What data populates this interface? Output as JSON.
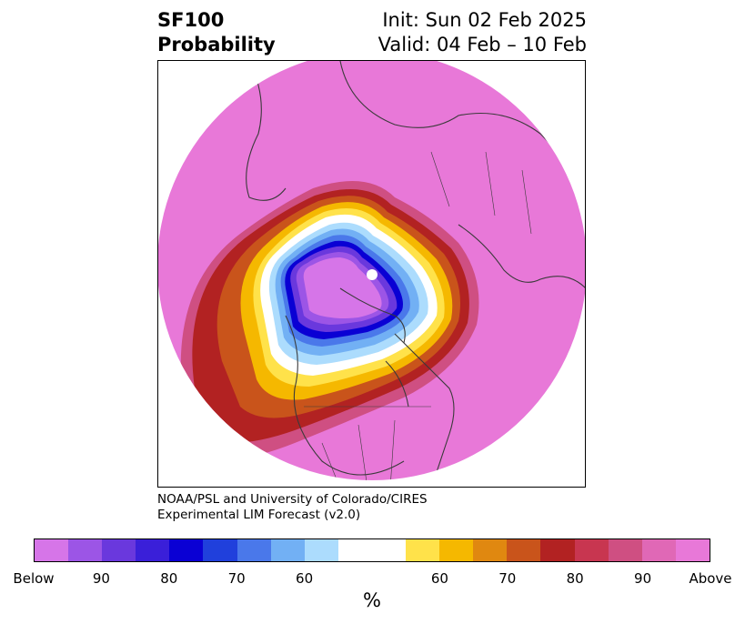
{
  "header": {
    "title_line1": "SF100",
    "title_line2": "Probability",
    "init_text": "Init: Sun 02 Feb 2025",
    "valid_text": "Valid: 04 Feb – 10 Feb"
  },
  "credit": {
    "line1": "NOAA/PSL and University of Colorado/CIRES",
    "line2": "Experimental LIM Forecast (v2.0)"
  },
  "colorbar": {
    "unit_label": "%",
    "colors": [
      "#d675e8",
      "#9c55e6",
      "#6a38dd",
      "#3a1fd9",
      "#0a00d4",
      "#2040dc",
      "#4a78ea",
      "#72b0f4",
      "#acdcfd",
      "#ffffff",
      "#ffe24a",
      "#f5b800",
      "#e08810",
      "#c9541b",
      "#b22222",
      "#c83650",
      "#cf4f82",
      "#e068b6",
      "#e878d8"
    ],
    "ticks": [
      "Below",
      "90",
      "80",
      "70",
      "60",
      "60",
      "70",
      "80",
      "90",
      "Above"
    ],
    "segment_flex": [
      1,
      1,
      1,
      1,
      1,
      1,
      1,
      1,
      1,
      2,
      1,
      1,
      1,
      1,
      1,
      1,
      1,
      1,
      1
    ]
  },
  "map": {
    "projection": "north-polar-stereographic",
    "background_color": "#e878d8",
    "below_colors": [
      "#acdcfd",
      "#72b0f4",
      "#4a78ea",
      "#0a00d4",
      "#6a38dd",
      "#9c55e6",
      "#d675e8"
    ],
    "above_colors": [
      "#c9541b",
      "#f5b800",
      "#ffe24a"
    ]
  }
}
